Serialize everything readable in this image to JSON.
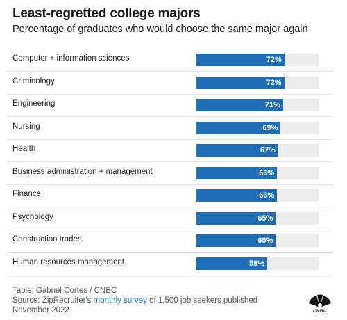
{
  "title": "Least-regretted college majors",
  "subtitle": "Percentage of graduates who would choose the same major again",
  "footer": {
    "table_credit": "Table: Gabriel Cortes / CNBC",
    "source_prefix": "Source: ZipRecruiter's ",
    "source_link": "monthly survey",
    "source_suffix": " of 1,500 job seekers published November 2022"
  },
  "logo": {
    "icon": "cnbc-peacock-icon",
    "text": "CNBC"
  },
  "colors": {
    "bar": "#1f6db5",
    "track": "#ececec",
    "link": "#1f7fc2"
  },
  "chart_data": {
    "type": "table",
    "title": "Least-regretted college majors",
    "subtitle": "Percentage of graduates who would choose the same major again",
    "ylim": [
      0,
      100
    ],
    "rows": [
      {
        "label": "Computer + information sciences",
        "value": 72,
        "display": "72%"
      },
      {
        "label": "Criminology",
        "value": 72,
        "display": "72%"
      },
      {
        "label": "Engineering",
        "value": 71,
        "display": "71%"
      },
      {
        "label": "Nursing",
        "value": 69,
        "display": "69%"
      },
      {
        "label": "Health",
        "value": 67,
        "display": "67%"
      },
      {
        "label": "Business administration + management",
        "value": 66,
        "display": "66%"
      },
      {
        "label": "Finance",
        "value": 66,
        "display": "66%"
      },
      {
        "label": "Psychology",
        "value": 65,
        "display": "65%"
      },
      {
        "label": "Construction trades",
        "value": 65,
        "display": "65%"
      },
      {
        "label": "Human resources management",
        "value": 58,
        "display": "58%"
      }
    ]
  }
}
